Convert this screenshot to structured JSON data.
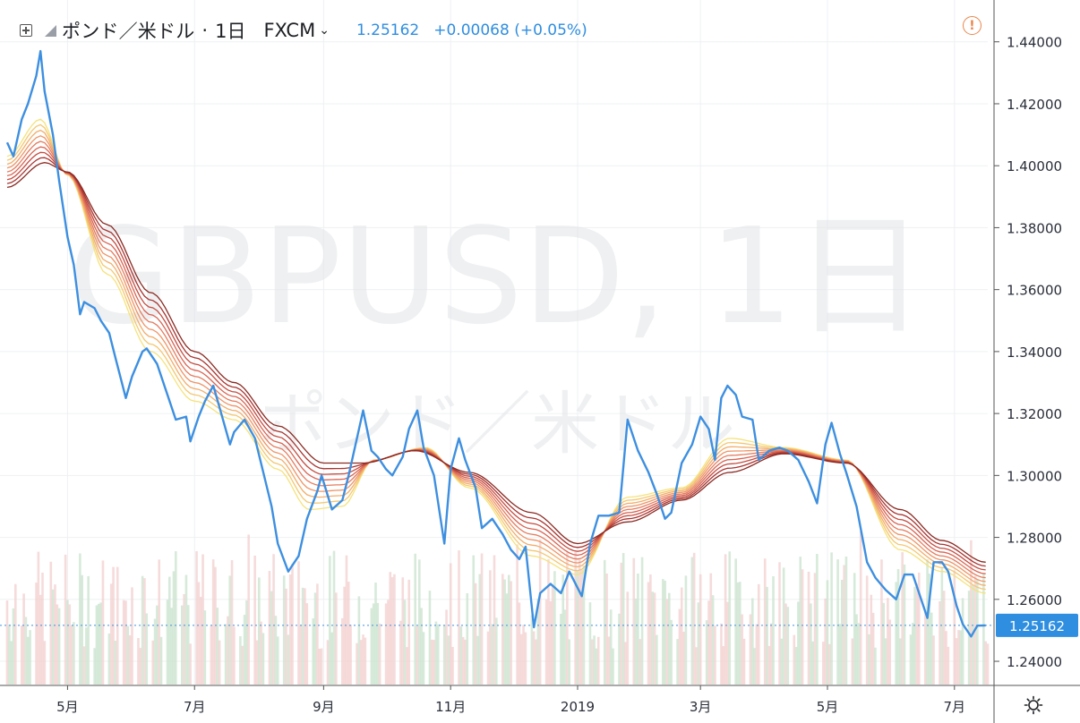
{
  "header": {
    "symbol_label": "ポンド／米ドル",
    "separator": "·",
    "interval": "1日",
    "exchange": "FXCM",
    "last_price": "1.25162",
    "change": "+0.00068 (+0.05%)"
  },
  "watermark": {
    "ticker": "GBPUSD, 1日",
    "name": "ポンド／米ドル"
  },
  "colors": {
    "price_line": "#3d8fe0",
    "ribbon": [
      "#f5e27a",
      "#f4c770",
      "#f2ad6a",
      "#ee9466",
      "#e57c5e",
      "#d86452",
      "#c44c40",
      "#a83430",
      "#8a2a22"
    ],
    "alert": "#e8864c",
    "vol_up": "#c9e3cd",
    "vol_down": "#f3cfcf"
  },
  "chart_data": {
    "type": "line",
    "title": "",
    "xlabel": "",
    "ylabel": "",
    "ylim": [
      1.2325,
      1.4535
    ],
    "y_ticks": [
      "1.44000",
      "1.42000",
      "1.40000",
      "1.38000",
      "1.36000",
      "1.34000",
      "1.32000",
      "1.30000",
      "1.28000",
      "1.26000",
      "1.24000"
    ],
    "x_ticks": [
      {
        "label": "5月",
        "date": "2018-05-01"
      },
      {
        "label": "7月",
        "date": "2018-07-01"
      },
      {
        "label": "9月",
        "date": "2018-09-01"
      },
      {
        "label": "11月",
        "date": "2018-11-01"
      },
      {
        "label": "2019",
        "date": "2019-01-01"
      },
      {
        "label": "3月",
        "date": "2019-03-01"
      },
      {
        "label": "5月",
        "date": "2019-05-01"
      },
      {
        "label": "7月",
        "date": "2019-07-01"
      }
    ],
    "x_range": [
      "2018-04-02",
      "2019-07-17"
    ],
    "last_price_label": "1.25162",
    "last_price": 1.25162,
    "series": [
      {
        "type": "line",
        "values": [
          [
            "2018-04-02",
            1.4075
          ],
          [
            "2018-04-05",
            1.403
          ],
          [
            "2018-04-09",
            1.415
          ],
          [
            "2018-04-12",
            1.42
          ],
          [
            "2018-04-16",
            1.429
          ],
          [
            "2018-04-18",
            1.437
          ],
          [
            "2018-04-20",
            1.424
          ],
          [
            "2018-04-24",
            1.41
          ],
          [
            "2018-04-27",
            1.395
          ],
          [
            "2018-05-01",
            1.377
          ],
          [
            "2018-05-04",
            1.368
          ],
          [
            "2018-05-07",
            1.352
          ],
          [
            "2018-05-09",
            1.356
          ],
          [
            "2018-05-14",
            1.354
          ],
          [
            "2018-05-17",
            1.35
          ],
          [
            "2018-05-21",
            1.346
          ],
          [
            "2018-05-24",
            1.338
          ],
          [
            "2018-05-29",
            1.325
          ],
          [
            "2018-06-01",
            1.332
          ],
          [
            "2018-06-06",
            1.34
          ],
          [
            "2018-06-08",
            1.341
          ],
          [
            "2018-06-13",
            1.336
          ],
          [
            "2018-06-18",
            1.326
          ],
          [
            "2018-06-22",
            1.318
          ],
          [
            "2018-06-27",
            1.319
          ],
          [
            "2018-06-29",
            1.311
          ],
          [
            "2018-07-03",
            1.319
          ],
          [
            "2018-07-06",
            1.324
          ],
          [
            "2018-07-10",
            1.329
          ],
          [
            "2018-07-13",
            1.322
          ],
          [
            "2018-07-18",
            1.31
          ],
          [
            "2018-07-20",
            1.314
          ],
          [
            "2018-07-25",
            1.318
          ],
          [
            "2018-07-30",
            1.312
          ],
          [
            "2018-08-03",
            1.301
          ],
          [
            "2018-08-07",
            1.29
          ],
          [
            "2018-08-10",
            1.278
          ],
          [
            "2018-08-15",
            1.269
          ],
          [
            "2018-08-20",
            1.274
          ],
          [
            "2018-08-24",
            1.286
          ],
          [
            "2018-08-29",
            1.295
          ],
          [
            "2018-08-31",
            1.3
          ],
          [
            "2018-09-05",
            1.289
          ],
          [
            "2018-09-10",
            1.292
          ],
          [
            "2018-09-13",
            1.3
          ],
          [
            "2018-09-17",
            1.312
          ],
          [
            "2018-09-20",
            1.321
          ],
          [
            "2018-09-24",
            1.308
          ],
          [
            "2018-09-27",
            1.306
          ],
          [
            "2018-10-01",
            1.302
          ],
          [
            "2018-10-04",
            1.3
          ],
          [
            "2018-10-09",
            1.306
          ],
          [
            "2018-10-12",
            1.315
          ],
          [
            "2018-10-16",
            1.321
          ],
          [
            "2018-10-19",
            1.309
          ],
          [
            "2018-10-24",
            1.3
          ],
          [
            "2018-10-29",
            1.278
          ],
          [
            "2018-11-01",
            1.302
          ],
          [
            "2018-11-05",
            1.312
          ],
          [
            "2018-11-08",
            1.305
          ],
          [
            "2018-11-13",
            1.296
          ],
          [
            "2018-11-16",
            1.283
          ],
          [
            "2018-11-21",
            1.286
          ],
          [
            "2018-11-26",
            1.281
          ],
          [
            "2018-11-30",
            1.276
          ],
          [
            "2018-12-04",
            1.273
          ],
          [
            "2018-12-07",
            1.277
          ],
          [
            "2018-12-11",
            1.251
          ],
          [
            "2018-12-14",
            1.262
          ],
          [
            "2018-12-19",
            1.265
          ],
          [
            "2018-12-24",
            1.262
          ],
          [
            "2018-12-28",
            1.269
          ],
          [
            "2019-01-03",
            1.261
          ],
          [
            "2019-01-07",
            1.278
          ],
          [
            "2019-01-11",
            1.287
          ],
          [
            "2019-01-16",
            1.287
          ],
          [
            "2019-01-21",
            1.288
          ],
          [
            "2019-01-25",
            1.318
          ],
          [
            "2019-01-30",
            1.308
          ],
          [
            "2019-02-04",
            1.301
          ],
          [
            "2019-02-08",
            1.294
          ],
          [
            "2019-02-12",
            1.286
          ],
          [
            "2019-02-15",
            1.288
          ],
          [
            "2019-02-20",
            1.304
          ],
          [
            "2019-02-25",
            1.31
          ],
          [
            "2019-03-01",
            1.319
          ],
          [
            "2019-03-05",
            1.315
          ],
          [
            "2019-03-08",
            1.305
          ],
          [
            "2019-03-11",
            1.325
          ],
          [
            "2019-03-14",
            1.329
          ],
          [
            "2019-03-18",
            1.326
          ],
          [
            "2019-03-21",
            1.319
          ],
          [
            "2019-03-26",
            1.318
          ],
          [
            "2019-03-29",
            1.305
          ],
          [
            "2019-04-03",
            1.308
          ],
          [
            "2019-04-08",
            1.309
          ],
          [
            "2019-04-12",
            1.308
          ],
          [
            "2019-04-17",
            1.305
          ],
          [
            "2019-04-22",
            1.298
          ],
          [
            "2019-04-26",
            1.291
          ],
          [
            "2019-04-30",
            1.31
          ],
          [
            "2019-05-03",
            1.317
          ],
          [
            "2019-05-07",
            1.307
          ],
          [
            "2019-05-10",
            1.301
          ],
          [
            "2019-05-15",
            1.29
          ],
          [
            "2019-05-20",
            1.272
          ],
          [
            "2019-05-24",
            1.267
          ],
          [
            "2019-05-29",
            1.263
          ],
          [
            "2019-06-03",
            1.26
          ],
          [
            "2019-06-07",
            1.268
          ],
          [
            "2019-06-11",
            1.268
          ],
          [
            "2019-06-14",
            1.262
          ],
          [
            "2019-06-18",
            1.254
          ],
          [
            "2019-06-21",
            1.272
          ],
          [
            "2019-06-25",
            1.272
          ],
          [
            "2019-06-28",
            1.269
          ],
          [
            "2019-07-02",
            1.258
          ],
          [
            "2019-07-05",
            1.252
          ],
          [
            "2019-07-09",
            1.248
          ],
          [
            "2019-07-12",
            1.2515
          ],
          [
            "2019-07-16",
            1.2516
          ]
        ]
      },
      {
        "type": "ribbon",
        "note": "Moving-average ribbon; values listed for the slowest line, faster lines lie between it and the fastest.",
        "slow": [
          [
            "2018-04-02",
            1.393
          ],
          [
            "2018-04-20",
            1.401
          ],
          [
            "2018-05-01",
            1.398
          ],
          [
            "2018-05-20",
            1.381
          ],
          [
            "2018-06-10",
            1.359
          ],
          [
            "2018-07-01",
            1.34
          ],
          [
            "2018-07-20",
            1.33
          ],
          [
            "2018-08-10",
            1.316
          ],
          [
            "2018-09-01",
            1.304
          ],
          [
            "2018-09-20",
            1.304
          ],
          [
            "2018-10-15",
            1.308
          ],
          [
            "2018-11-10",
            1.301
          ],
          [
            "2018-12-10",
            1.288
          ],
          [
            "2019-01-01",
            1.278
          ],
          [
            "2019-01-25",
            1.285
          ],
          [
            "2019-02-20",
            1.292
          ],
          [
            "2019-03-15",
            1.301
          ],
          [
            "2019-04-10",
            1.307
          ],
          [
            "2019-05-10",
            1.304
          ],
          [
            "2019-06-05",
            1.289
          ],
          [
            "2019-06-25",
            1.279
          ],
          [
            "2019-07-16",
            1.272
          ]
        ],
        "fast": [
          [
            "2018-04-02",
            1.403
          ],
          [
            "2018-04-18",
            1.415
          ],
          [
            "2018-05-01",
            1.397
          ],
          [
            "2018-05-20",
            1.365
          ],
          [
            "2018-06-10",
            1.34
          ],
          [
            "2018-07-01",
            1.324
          ],
          [
            "2018-07-20",
            1.318
          ],
          [
            "2018-08-10",
            1.302
          ],
          [
            "2018-08-25",
            1.289
          ],
          [
            "2018-09-10",
            1.29
          ],
          [
            "2018-09-25",
            1.305
          ],
          [
            "2018-10-20",
            1.309
          ],
          [
            "2018-11-10",
            1.296
          ],
          [
            "2018-12-10",
            1.274
          ],
          [
            "2019-01-01",
            1.268
          ],
          [
            "2019-01-25",
            1.293
          ],
          [
            "2019-02-20",
            1.296
          ],
          [
            "2019-03-15",
            1.312
          ],
          [
            "2019-04-10",
            1.309
          ],
          [
            "2019-05-10",
            1.305
          ],
          [
            "2019-06-05",
            1.276
          ],
          [
            "2019-06-25",
            1.269
          ],
          [
            "2019-07-16",
            1.262
          ]
        ]
      }
    ]
  }
}
